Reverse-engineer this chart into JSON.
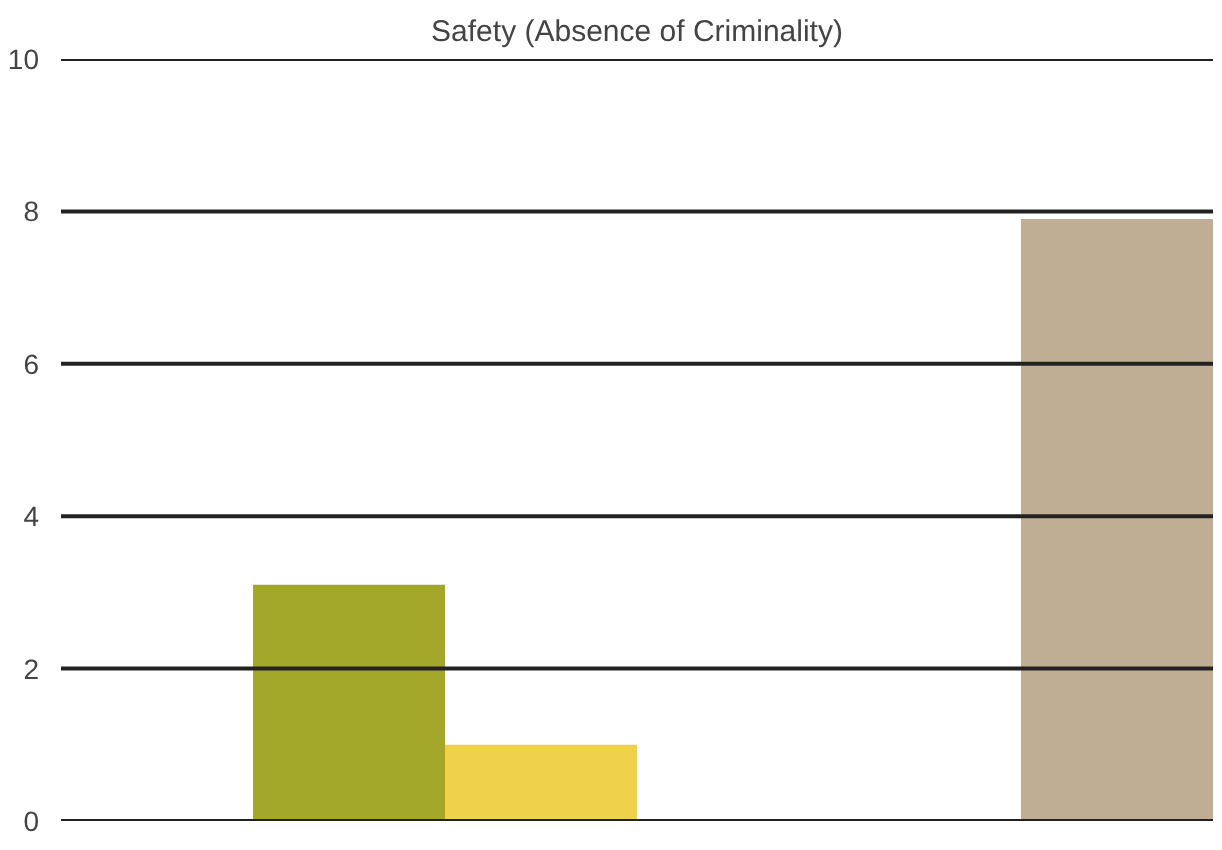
{
  "chart_data": {
    "type": "bar",
    "title": "Safety (Absence of Criminality)",
    "categories": [
      null,
      null,
      null,
      null,
      null,
      null
    ],
    "values": [
      null,
      3.1,
      1.0,
      null,
      null,
      7.9
    ],
    "colors": [
      "#a3a82a",
      "#a3a82a",
      "#f0d24a",
      "#bfae94",
      "#bfae94",
      "#bfae94"
    ],
    "ylim": [
      0,
      10
    ],
    "yticks": [
      0,
      2,
      4,
      6,
      8,
      10
    ],
    "grid": "y"
  }
}
